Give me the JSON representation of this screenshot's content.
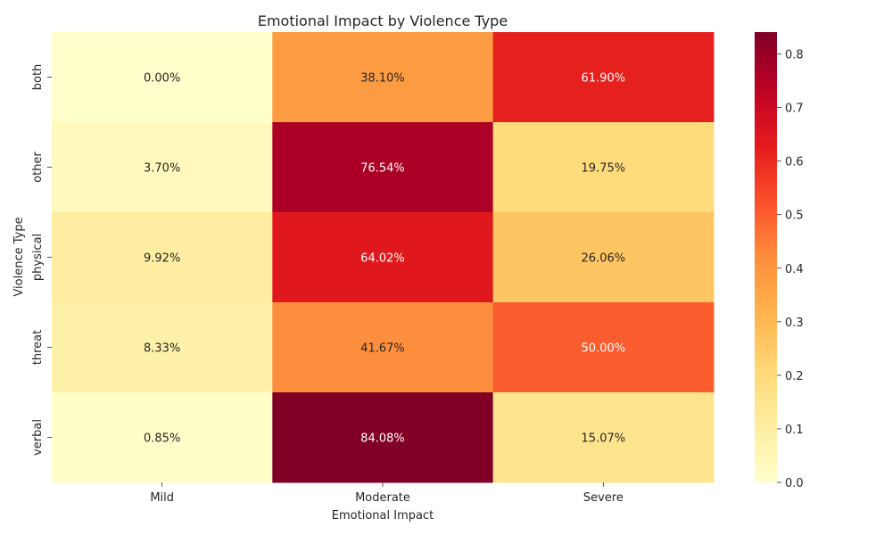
{
  "chart_data": {
    "type": "heatmap",
    "title": "Emotional Impact by Violence Type",
    "xlabel": "Emotional Impact",
    "ylabel": "Violence Type",
    "x_categories": [
      "Mild",
      "Moderate",
      "Severe"
    ],
    "y_categories": [
      "both",
      "other",
      "physical",
      "threat",
      "verbal"
    ],
    "values": [
      [
        0.0,
        0.381,
        0.619
      ],
      [
        0.037,
        0.7654,
        0.1975
      ],
      [
        0.0992,
        0.6402,
        0.2606
      ],
      [
        0.0833,
        0.4167,
        0.5
      ],
      [
        0.0085,
        0.8408,
        0.1507
      ]
    ],
    "cell_labels": [
      [
        "0.00%",
        "38.10%",
        "61.90%"
      ],
      [
        "3.70%",
        "76.54%",
        "19.75%"
      ],
      [
        "9.92%",
        "64.02%",
        "26.06%"
      ],
      [
        "8.33%",
        "41.67%",
        "50.00%"
      ],
      [
        "0.85%",
        "84.08%",
        "15.07%"
      ]
    ],
    "colormap": "YlOrRd",
    "colorbar": {
      "min": 0.0,
      "max": 0.8408,
      "ticks": [
        "0.0",
        "0.1",
        "0.2",
        "0.3",
        "0.4",
        "0.5",
        "0.6",
        "0.7",
        "0.8"
      ]
    }
  }
}
